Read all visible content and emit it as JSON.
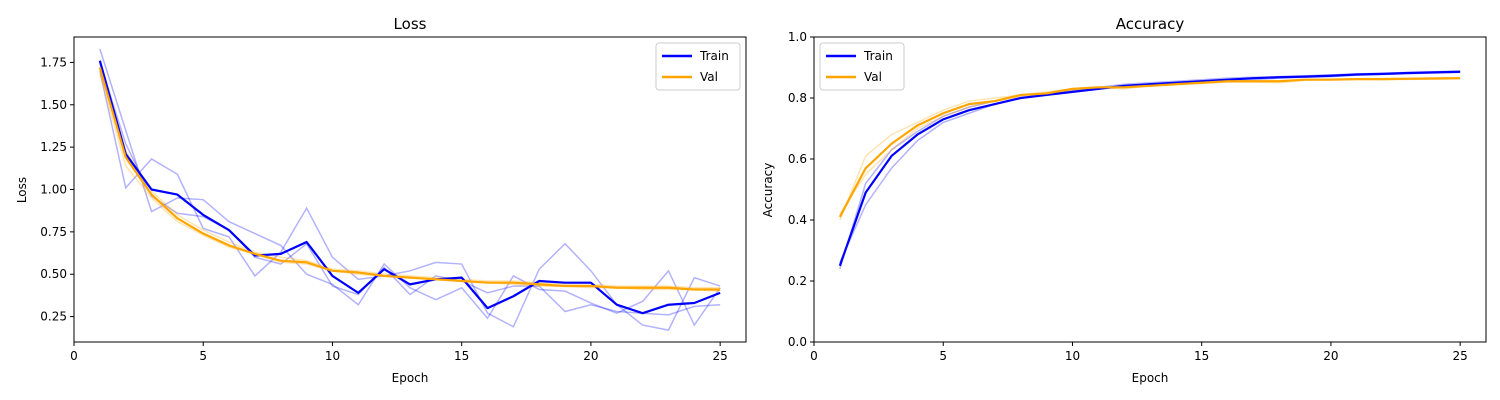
{
  "chart_data": [
    {
      "type": "line",
      "title": "Loss",
      "xlabel": "Epoch",
      "ylabel": "Loss",
      "xlim": [
        0,
        26
      ],
      "ylim": [
        0.1,
        1.9
      ],
      "xticks": [
        "0",
        "5",
        "10",
        "15",
        "20",
        "25"
      ],
      "yticks": [
        "0.25",
        "0.50",
        "0.75",
        "1.00",
        "1.25",
        "1.50",
        "1.75"
      ],
      "legend": "top-right",
      "grid": false,
      "x": [
        1,
        2,
        3,
        4,
        5,
        6,
        7,
        8,
        9,
        10,
        11,
        12,
        13,
        14,
        15,
        16,
        17,
        18,
        19,
        20,
        21,
        22,
        23,
        24,
        25
      ],
      "series": [
        {
          "name": "Train",
          "color": "#0000ff",
          "values": [
            1.76,
            1.21,
            1.0,
            0.97,
            0.85,
            0.76,
            0.61,
            0.62,
            0.69,
            0.49,
            0.39,
            0.53,
            0.44,
            0.47,
            0.48,
            0.3,
            0.37,
            0.46,
            0.45,
            0.45,
            0.32,
            0.27,
            0.32,
            0.33,
            0.39
          ]
        },
        {
          "name": "Val",
          "color": "#ffa500",
          "values": [
            1.72,
            1.19,
            0.97,
            0.83,
            0.74,
            0.67,
            0.62,
            0.58,
            0.57,
            0.52,
            0.51,
            0.49,
            0.48,
            0.47,
            0.46,
            0.45,
            0.45,
            0.44,
            0.43,
            0.43,
            0.42,
            0.42,
            0.42,
            0.41,
            0.41
          ]
        }
      ],
      "faint_series": [
        {
          "color": "#0000ff",
          "values": [
            1.83,
            1.35,
            0.87,
            0.95,
            0.94,
            0.81,
            0.74,
            0.67,
            0.5,
            0.44,
            0.32,
            0.56,
            0.42,
            0.35,
            0.42,
            0.24,
            0.49,
            0.41,
            0.4,
            0.33,
            0.27,
            0.34,
            0.52,
            0.2,
            0.42
          ]
        },
        {
          "color": "#0000ff",
          "values": [
            1.7,
            1.01,
            1.18,
            1.09,
            0.77,
            0.72,
            0.49,
            0.63,
            0.89,
            0.6,
            0.47,
            0.49,
            0.52,
            0.57,
            0.56,
            0.27,
            0.19,
            0.53,
            0.68,
            0.52,
            0.32,
            0.2,
            0.17,
            0.48,
            0.43
          ]
        },
        {
          "color": "#0000ff",
          "values": [
            1.75,
            1.27,
            0.96,
            0.86,
            0.84,
            0.76,
            0.6,
            0.56,
            0.68,
            0.43,
            0.38,
            0.54,
            0.38,
            0.49,
            0.46,
            0.39,
            0.43,
            0.43,
            0.28,
            0.32,
            0.28,
            0.27,
            0.26,
            0.31,
            0.32
          ]
        },
        {
          "color": "#ffa500",
          "values": [
            1.68,
            1.14,
            0.95,
            0.81,
            0.73,
            0.66,
            0.62,
            0.57,
            0.56,
            0.52,
            0.5,
            0.49,
            0.48,
            0.47,
            0.46,
            0.45,
            0.44,
            0.43,
            0.43,
            0.42,
            0.42,
            0.41,
            0.41,
            0.41,
            0.4
          ]
        },
        {
          "color": "#ffa500",
          "values": [
            1.74,
            1.23,
            0.99,
            0.85,
            0.76,
            0.69,
            0.63,
            0.6,
            0.58,
            0.53,
            0.52,
            0.5,
            0.49,
            0.48,
            0.47,
            0.46,
            0.46,
            0.45,
            0.44,
            0.44,
            0.43,
            0.43,
            0.43,
            0.42,
            0.42
          ]
        }
      ]
    },
    {
      "type": "line",
      "title": "Accuracy",
      "xlabel": "Epoch",
      "ylabel": "Accuracy",
      "xlim": [
        0,
        26
      ],
      "ylim": [
        0.0,
        1.0
      ],
      "xticks": [
        "0",
        "5",
        "10",
        "15",
        "20",
        "25"
      ],
      "yticks": [
        "0.0",
        "0.2",
        "0.4",
        "0.6",
        "0.8",
        "1.0"
      ],
      "legend": "top-left",
      "grid": false,
      "x": [
        1,
        2,
        3,
        4,
        5,
        6,
        7,
        8,
        9,
        10,
        11,
        12,
        13,
        14,
        15,
        16,
        17,
        18,
        19,
        20,
        21,
        22,
        23,
        24,
        25
      ],
      "series": [
        {
          "name": "Train",
          "color": "#0000ff",
          "values": [
            0.25,
            0.49,
            0.61,
            0.68,
            0.73,
            0.76,
            0.78,
            0.8,
            0.81,
            0.82,
            0.83,
            0.84,
            0.845,
            0.85,
            0.855,
            0.86,
            0.865,
            0.868,
            0.87,
            0.873,
            0.877,
            0.879,
            0.882,
            0.884,
            0.886
          ]
        },
        {
          "name": "Val",
          "color": "#ffa500",
          "values": [
            0.41,
            0.57,
            0.65,
            0.71,
            0.75,
            0.78,
            0.79,
            0.81,
            0.815,
            0.83,
            0.835,
            0.835,
            0.84,
            0.845,
            0.85,
            0.855,
            0.855,
            0.855,
            0.86,
            0.86,
            0.862,
            0.862,
            0.863,
            0.864,
            0.865
          ]
        }
      ],
      "faint_series": [
        {
          "color": "#0000ff",
          "values": [
            0.26,
            0.45,
            0.57,
            0.66,
            0.72,
            0.75,
            0.78,
            0.8,
            0.81,
            0.82,
            0.83,
            0.84,
            0.84,
            0.85,
            0.855,
            0.86,
            0.86,
            0.865,
            0.868,
            0.87,
            0.875,
            0.877,
            0.88,
            0.882,
            0.884
          ]
        },
        {
          "color": "#0000ff",
          "values": [
            0.24,
            0.52,
            0.63,
            0.69,
            0.74,
            0.77,
            0.79,
            0.81,
            0.815,
            0.825,
            0.835,
            0.845,
            0.85,
            0.855,
            0.86,
            0.865,
            0.868,
            0.87,
            0.873,
            0.876,
            0.879,
            0.881,
            0.884,
            0.886,
            0.888
          ]
        },
        {
          "color": "#ffa500",
          "values": [
            0.4,
            0.61,
            0.68,
            0.72,
            0.76,
            0.79,
            0.8,
            0.81,
            0.82,
            0.83,
            0.835,
            0.83,
            0.84,
            0.845,
            0.848,
            0.852,
            0.852,
            0.85,
            0.858,
            0.86,
            0.861,
            0.86,
            0.861,
            0.862,
            0.863
          ]
        },
        {
          "color": "#ffa500",
          "values": [
            0.42,
            0.55,
            0.63,
            0.7,
            0.74,
            0.77,
            0.79,
            0.805,
            0.81,
            0.825,
            0.83,
            0.835,
            0.84,
            0.845,
            0.85,
            0.855,
            0.856,
            0.857,
            0.86,
            0.862,
            0.863,
            0.864,
            0.865,
            0.866,
            0.867
          ]
        }
      ]
    }
  ]
}
